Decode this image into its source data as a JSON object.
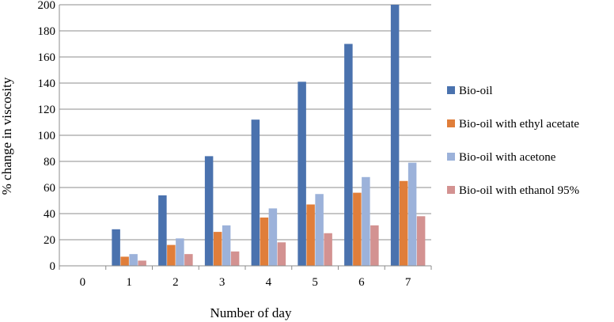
{
  "chart_data": {
    "type": "bar",
    "title": "",
    "xlabel": "Number of day",
    "ylabel": "% change in viscosity",
    "categories": [
      "0",
      "1",
      "2",
      "3",
      "4",
      "5",
      "6",
      "7"
    ],
    "ylim": [
      0,
      200
    ],
    "yticks": [
      0,
      20,
      40,
      60,
      80,
      100,
      120,
      140,
      160,
      180,
      200
    ],
    "grid": "horizontal",
    "legend_position": "right",
    "series": [
      {
        "name": "Bio-oil",
        "color": "#4A72AE",
        "values": [
          0,
          28,
          54,
          84,
          112,
          141,
          170,
          200
        ]
      },
      {
        "name": "Bio-oil with ethyl acetate",
        "color": "#E07E3A",
        "values": [
          0,
          7,
          16,
          26,
          37,
          47,
          56,
          65
        ]
      },
      {
        "name": "Bio-oil with acetone",
        "color": "#9CB2DA",
        "values": [
          0,
          9,
          21,
          31,
          44,
          55,
          68,
          79
        ]
      },
      {
        "name": "Bio-oil with ethanol 95%",
        "color": "#D39291",
        "values": [
          0,
          4,
          9,
          11,
          18,
          25,
          31,
          38
        ]
      }
    ]
  }
}
